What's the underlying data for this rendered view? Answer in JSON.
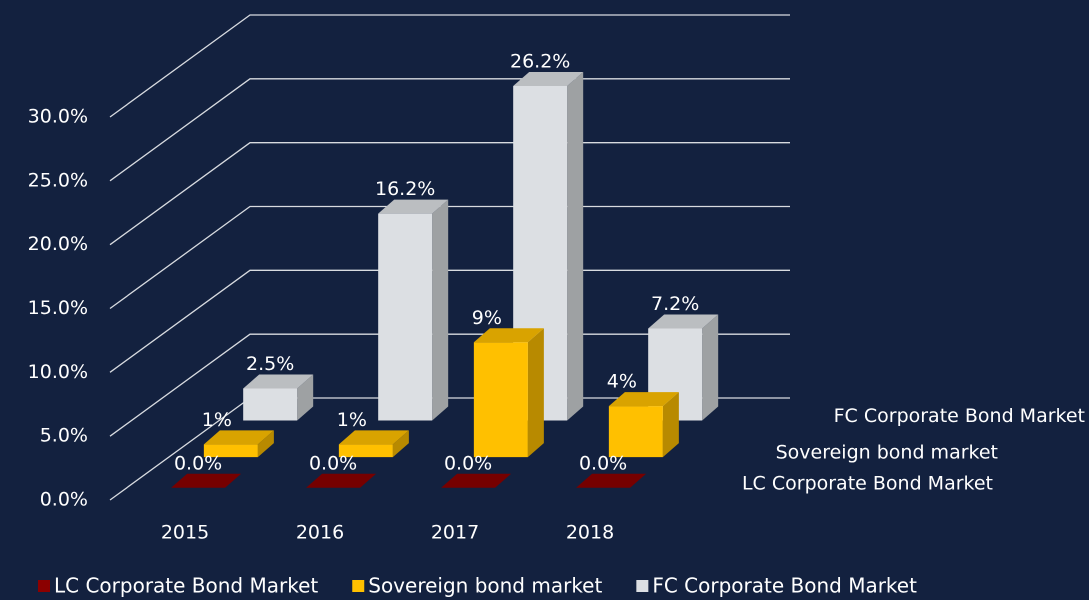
{
  "chart_data": {
    "type": "bar3d",
    "categories": [
      "2015",
      "2016",
      "2017",
      "2018"
    ],
    "series": [
      {
        "name": "LC Corporate Bond Market",
        "color": "#8b0000",
        "values": [
          0,
          0,
          0,
          0
        ],
        "value_labels": [
          "0.0%",
          "0.0%",
          "0.0%",
          "0.0%"
        ]
      },
      {
        "name": "Sovereign bond market",
        "color": "#ffc000",
        "values": [
          1,
          1,
          9,
          4
        ],
        "value_labels": [
          "1%",
          "1%",
          "9%",
          "4%"
        ]
      },
      {
        "name": "FC Corporate Bond Market",
        "color": "#dcdfe3",
        "values": [
          2.5,
          16.2,
          26.2,
          7.2
        ],
        "value_labels": [
          "2.5%",
          "16.2%",
          "26.2%",
          "7.2%"
        ]
      }
    ],
    "ylim": [
      0,
      30
    ],
    "yticks": [
      {
        "value": 0,
        "label": "0.0%"
      },
      {
        "value": 5,
        "label": "5.0%"
      },
      {
        "value": 10,
        "label": "10.0%"
      },
      {
        "value": 15,
        "label": "15.0%"
      },
      {
        "value": 20,
        "label": "20.0%"
      },
      {
        "value": 25,
        "label": "25.0%"
      },
      {
        "value": 30,
        "label": "30.0%"
      }
    ],
    "grid": true
  }
}
